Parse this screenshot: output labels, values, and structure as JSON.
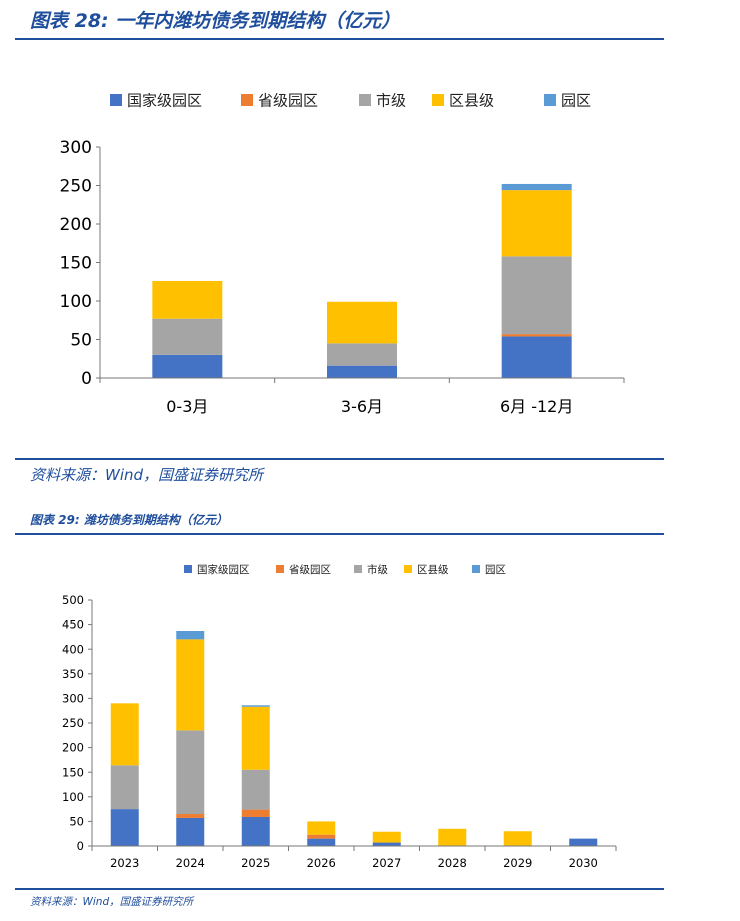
{
  "figure1": {
    "title": "图表 28:  一年内潍坊债务到期结构（亿元）",
    "source": "资料来源：Wind，国盛证券研究所"
  },
  "figure2": {
    "title": "图表 29:  潍坊债务到期结构（亿元）",
    "source": "资料来源：Wind，国盛证券研究所"
  },
  "chart_data": [
    {
      "type": "bar",
      "stacked": true,
      "title": "",
      "xlabel": "",
      "ylabel": "",
      "categories": [
        "0-3月",
        "3-6月",
        "6月 -12月"
      ],
      "ylim": [
        0,
        300
      ],
      "yticks": [
        0,
        50,
        100,
        150,
        200,
        250,
        300
      ],
      "legend_position": "top",
      "grid": false,
      "series": [
        {
          "name": "国家级园区",
          "color": "#4472c4",
          "values": [
            30,
            16,
            54
          ]
        },
        {
          "name": "省级园区",
          "color": "#ed7d31",
          "values": [
            0,
            0,
            3
          ]
        },
        {
          "name": "市级",
          "color": "#a5a5a5",
          "values": [
            47,
            29,
            101
          ]
        },
        {
          "name": "区县级",
          "color": "#ffc000",
          "values": [
            49,
            54,
            86
          ]
        },
        {
          "name": "园区",
          "color": "#5b9bd5",
          "values": [
            0,
            0,
            8
          ]
        }
      ]
    },
    {
      "type": "bar",
      "stacked": true,
      "title": "",
      "xlabel": "",
      "ylabel": "",
      "categories": [
        "2023",
        "2024",
        "2025",
        "2026",
        "2027",
        "2028",
        "2029",
        "2030"
      ],
      "ylim": [
        0,
        500
      ],
      "yticks": [
        0,
        50,
        100,
        150,
        200,
        250,
        300,
        350,
        400,
        450,
        500
      ],
      "legend_position": "top",
      "grid": false,
      "series": [
        {
          "name": "国家级园区",
          "color": "#4472c4",
          "values": [
            75,
            57,
            59,
            15,
            7,
            0,
            0,
            15
          ]
        },
        {
          "name": "省级园区",
          "color": "#ed7d31",
          "values": [
            0,
            8,
            15,
            8,
            0,
            0,
            0,
            0
          ]
        },
        {
          "name": "市级",
          "color": "#a5a5a5",
          "values": [
            89,
            170,
            81,
            0,
            0,
            0,
            0,
            0
          ]
        },
        {
          "name": "区县级",
          "color": "#ffc000",
          "values": [
            126,
            185,
            128,
            27,
            22,
            35,
            30,
            0
          ]
        },
        {
          "name": "园区",
          "color": "#5b9bd5",
          "values": [
            0,
            17,
            3,
            0,
            0,
            0,
            0,
            0
          ]
        }
      ]
    }
  ]
}
